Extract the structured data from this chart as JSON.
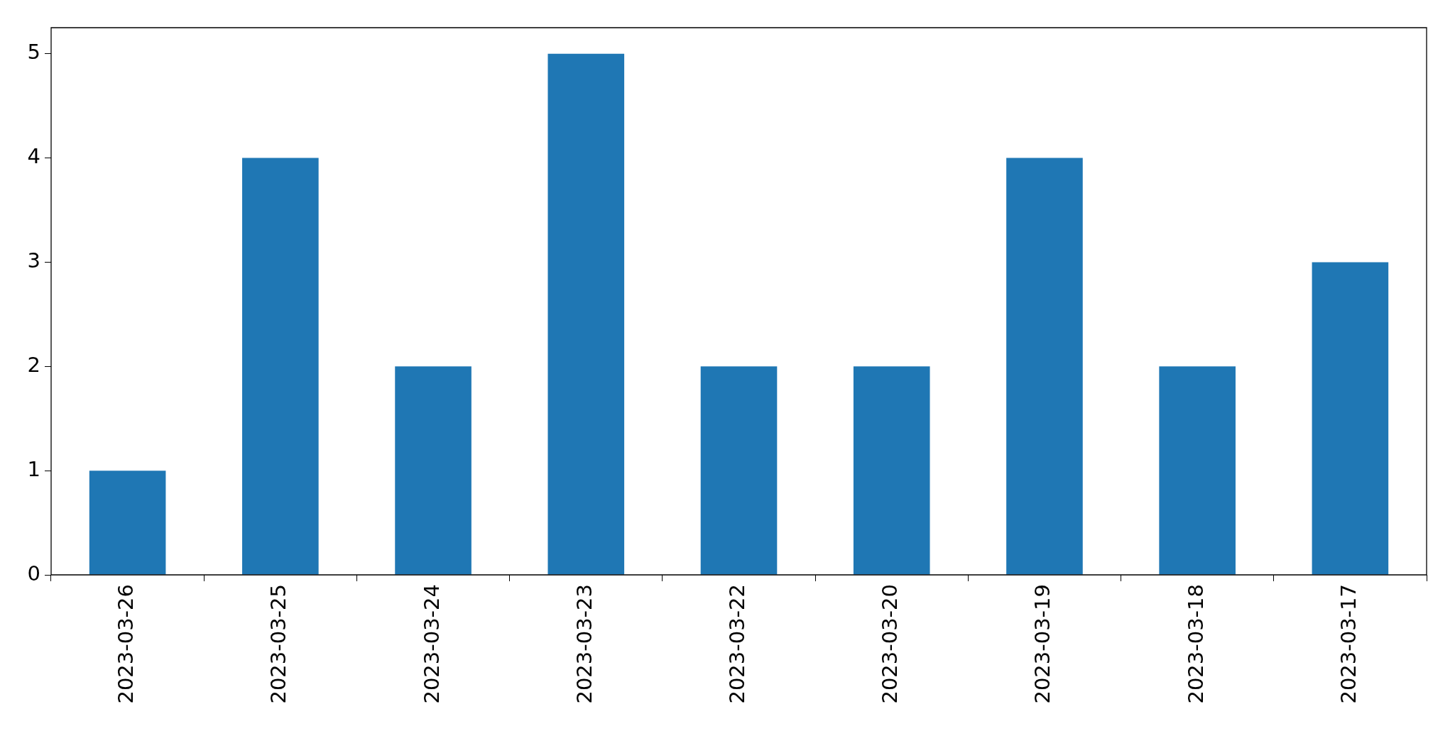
{
  "chart_data": {
    "type": "bar",
    "categories": [
      "2023-03-26",
      "2023-03-25",
      "2023-03-24",
      "2023-03-23",
      "2023-03-22",
      "2023-03-20",
      "2023-03-19",
      "2023-03-18",
      "2023-03-17"
    ],
    "values": [
      1,
      4,
      2,
      5,
      2,
      2,
      4,
      2,
      3
    ],
    "color": "#1f77b4",
    "ylim": [
      0,
      5.25
    ],
    "yticks": [
      0,
      1,
      2,
      3,
      4,
      5
    ]
  }
}
